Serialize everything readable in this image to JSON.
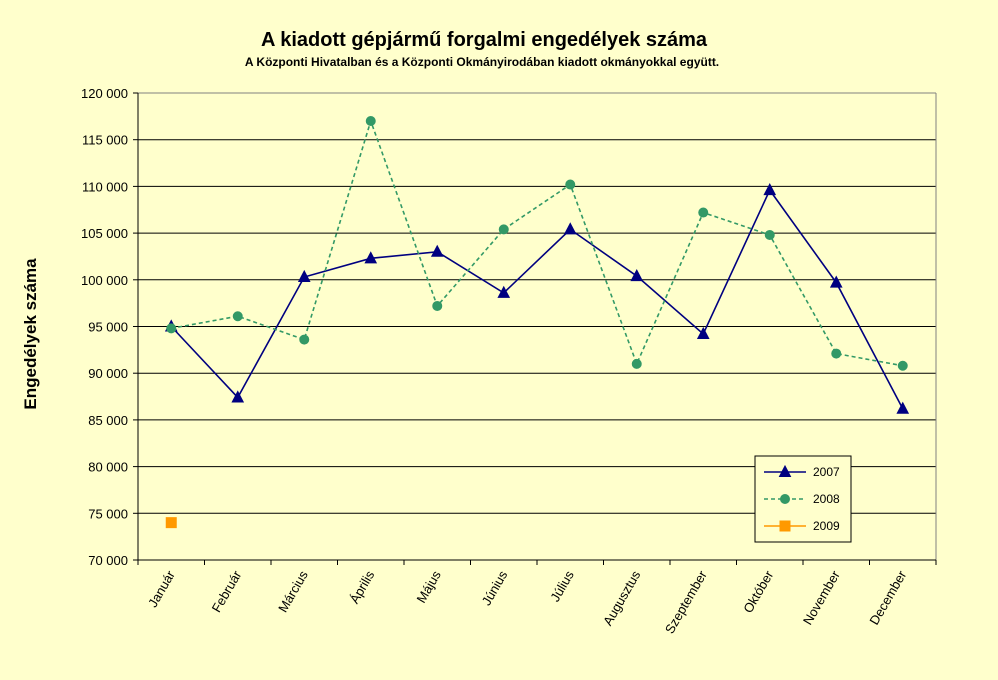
{
  "chart_data": {
    "type": "line",
    "title": "A  kiadott gépjármű forgalmi engedélyek száma",
    "subtitle": "A  Központi Hivatalban és a Központi Okmányirodában kiadott okmányokkal együtt.",
    "ylabel": "Engedélyek száma",
    "xlabel": "",
    "ylim": [
      70000,
      120000
    ],
    "yticks": [
      70000,
      75000,
      80000,
      85000,
      90000,
      95000,
      100000,
      105000,
      110000,
      115000,
      120000
    ],
    "ytick_labels": [
      "70 000",
      "75 000",
      "80 000",
      "85 000",
      "90 000",
      "95 000",
      "100 000",
      "105 000",
      "110 000",
      "115 000",
      "120 000"
    ],
    "grid": "horizontal",
    "legend_position": "bottom-right",
    "categories": [
      "Január",
      "Február",
      "Március",
      "Április",
      "Május",
      "Június",
      "Július",
      "Augusztus",
      "Szeptember",
      "Október",
      "November",
      "December"
    ],
    "series": [
      {
        "name": "2007",
        "color": "#000080",
        "marker": "triangle",
        "line_style": "solid",
        "values": [
          95000,
          87400,
          100300,
          102300,
          103000,
          98600,
          105400,
          100400,
          94200,
          109600,
          99700,
          86200
        ]
      },
      {
        "name": "2008",
        "color": "#339966",
        "marker": "circle",
        "line_style": "dashed",
        "values": [
          94800,
          96100,
          93600,
          117000,
          97200,
          105400,
          110200,
          91000,
          107200,
          104800,
          92100,
          90800
        ]
      },
      {
        "name": "2009",
        "color": "#FF9900",
        "marker": "square",
        "line_style": "solid",
        "values": [
          74000,
          null,
          null,
          null,
          null,
          null,
          null,
          null,
          null,
          null,
          null,
          null
        ]
      }
    ]
  }
}
